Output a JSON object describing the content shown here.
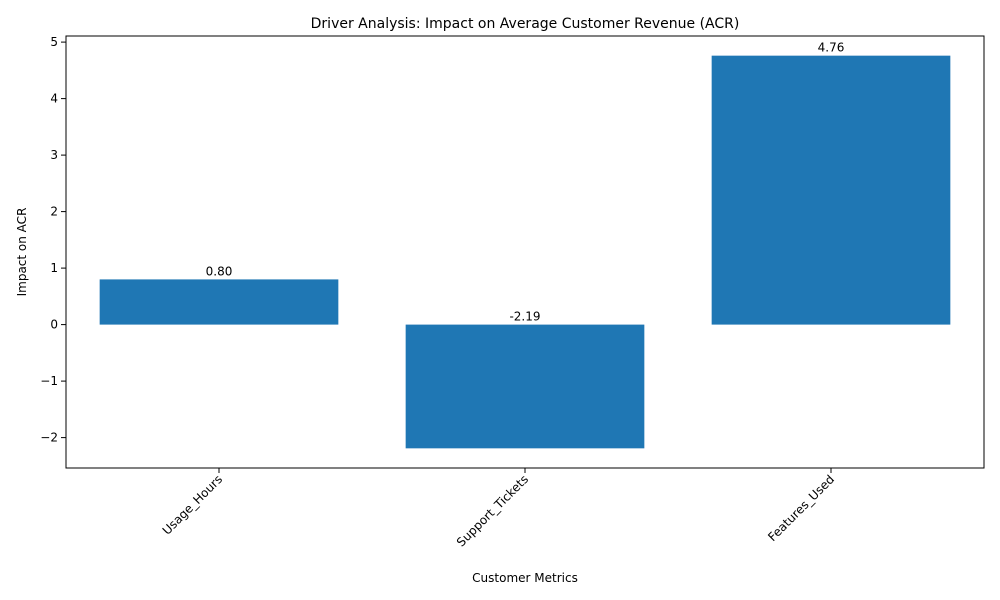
{
  "chart_data": {
    "type": "bar",
    "title": "Driver Analysis: Impact on Average Customer Revenue (ACR)",
    "xlabel": "Customer Metrics",
    "ylabel": "Impact on ACR",
    "categories": [
      "Usage_Hours",
      "Support_Tickets",
      "Features_Used"
    ],
    "values": [
      0.8,
      -2.19,
      4.76
    ],
    "value_labels": [
      "0.80",
      "-2.19",
      "4.76"
    ],
    "yticks": [
      -2,
      -1,
      0,
      1,
      2,
      3,
      4,
      5
    ],
    "ytick_labels": [
      "−2",
      "−1",
      "0",
      "1",
      "2",
      "3",
      "4",
      "5"
    ],
    "ylim": [
      -2.538,
      5.108
    ],
    "bar_color": "#1f77b4",
    "grid": false,
    "legend": "none"
  }
}
